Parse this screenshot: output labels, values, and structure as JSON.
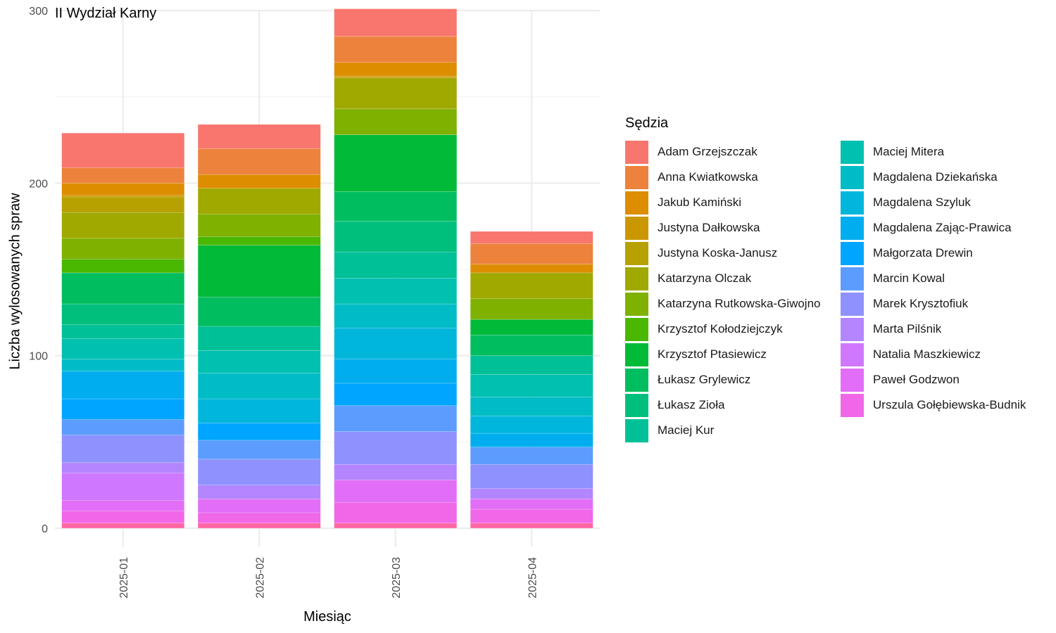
{
  "chart_data": {
    "type": "bar",
    "stacked": true,
    "title": "II Wydział Karny",
    "xlabel": "Miesiąc",
    "ylabel": "Liczba wylosowanych spraw",
    "ylim": [
      -11,
      300
    ],
    "yticks": [
      0,
      100,
      200,
      300
    ],
    "grid": true,
    "legend_title": "Sędzia",
    "legend_position": "right",
    "categories": [
      "2025-01",
      "2025-02",
      "2025-03",
      "2025-04"
    ],
    "series": [
      {
        "name": "Adam Grzejszczak",
        "color": "#F8766D",
        "values": [
          20,
          14,
          16,
          7
        ]
      },
      {
        "name": "Anna Kwiatkowska",
        "color": "#EC823C",
        "values": [
          9,
          15,
          15,
          12
        ]
      },
      {
        "name": "Jakub Kamiński",
        "color": "#DD8D00",
        "values": [
          7,
          8,
          8,
          5
        ]
      },
      {
        "name": "Justyna Dałkowska",
        "color": "#CB9700",
        "values": [
          1,
          0,
          1,
          0
        ]
      },
      {
        "name": "Justyna Koska-Janusz",
        "color": "#B7A100",
        "values": [
          9,
          0,
          0,
          0
        ]
      },
      {
        "name": "Katarzyna Olczak",
        "color": "#9FA900",
        "values": [
          15,
          15,
          18,
          15
        ]
      },
      {
        "name": "Katarzyna Rutkowska-Giwojno",
        "color": "#7EB100",
        "values": [
          12,
          13,
          15,
          12
        ]
      },
      {
        "name": "Krzysztof Kołodziejczyk",
        "color": "#4AB700",
        "values": [
          8,
          5,
          0,
          0
        ]
      },
      {
        "name": "Krzysztof Ptasiewicz",
        "color": "#00BA38",
        "values": [
          0,
          30,
          33,
          9
        ]
      },
      {
        "name": "Łukasz Grylewicz",
        "color": "#00BD5F",
        "values": [
          18,
          17,
          17,
          12
        ]
      },
      {
        "name": "Łukasz Zioła",
        "color": "#00BF7D",
        "values": [
          12,
          0,
          18,
          0
        ]
      },
      {
        "name": "Maciej Kur",
        "color": "#00C097",
        "values": [
          8,
          14,
          15,
          11
        ]
      },
      {
        "name": "Maciej Mitera",
        "color": "#00C0AF",
        "values": [
          12,
          13,
          15,
          13
        ]
      },
      {
        "name": "Magdalena Dziekańska",
        "color": "#00BCC6",
        "values": [
          7,
          15,
          14,
          11
        ]
      },
      {
        "name": "Magdalena Szyluk",
        "color": "#00B6DB",
        "values": [
          0,
          14,
          18,
          10
        ]
      },
      {
        "name": "Magdalena Zając-Prawica",
        "color": "#00ADEE",
        "values": [
          16,
          0,
          14,
          8
        ]
      },
      {
        "name": "Małgorzata Drewin",
        "color": "#00A5FF",
        "values": [
          12,
          10,
          13,
          0
        ]
      },
      {
        "name": "Marcin Kowal",
        "color": "#5C9CFF",
        "values": [
          9,
          11,
          15,
          10
        ]
      },
      {
        "name": "Marek Krysztofiuk",
        "color": "#8F91FF",
        "values": [
          16,
          15,
          19,
          14
        ]
      },
      {
        "name": "Marta Pilśnik",
        "color": "#B385FF",
        "values": [
          6,
          8,
          9,
          6
        ]
      },
      {
        "name": "Natalia Maszkiewicz",
        "color": "#CF78FF",
        "values": [
          16,
          0,
          0,
          0
        ]
      },
      {
        "name": "Paweł Godzwon",
        "color": "#E26EF7",
        "values": [
          6,
          8,
          13,
          6
        ]
      },
      {
        "name": "Urszula Gołębiewska-Budnik",
        "color": "#F067E8",
        "values": [
          7,
          6,
          12,
          8
        ]
      },
      {
        "name": "",
        "color": "#FB61D7",
        "values": [
          0,
          0,
          0,
          0
        ]
      },
      {
        "name": "",
        "color": "#FF62BC",
        "values": [
          0,
          0,
          0,
          0
        ]
      },
      {
        "name": "",
        "color": "#FF67A4",
        "values": [
          3,
          3,
          3,
          3
        ]
      }
    ]
  }
}
